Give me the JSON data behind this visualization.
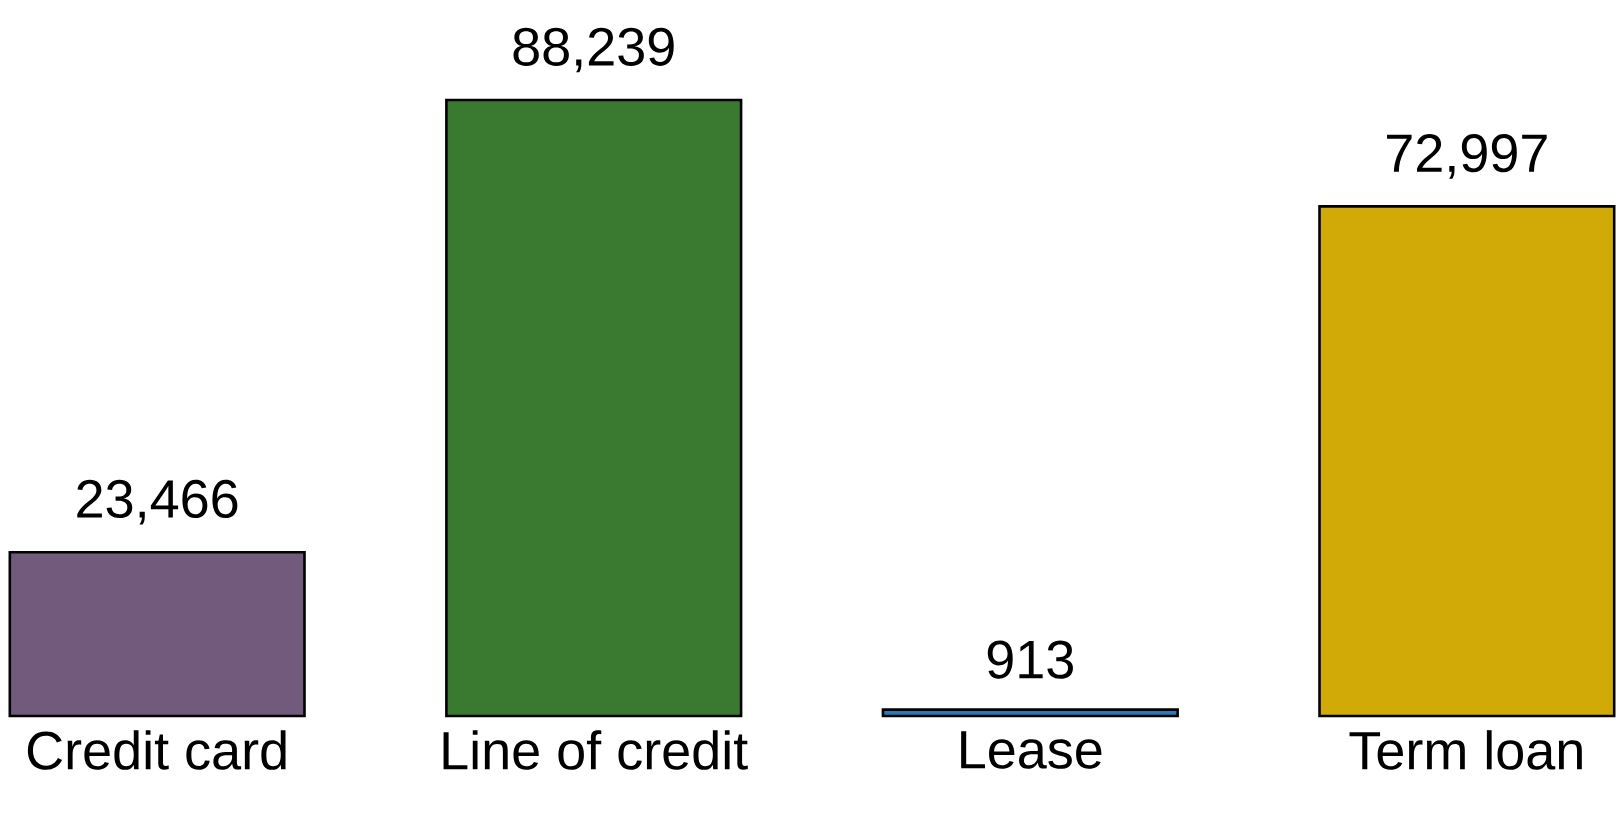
{
  "chart_data": {
    "type": "bar",
    "categories": [
      "Credit card",
      "Line of credit",
      "Lease",
      "Term loan"
    ],
    "values": [
      23466,
      88239,
      913,
      72997
    ],
    "colors": [
      "#725a7c",
      "#3a7a30",
      "#2a7ab8",
      "#d1aa08"
    ],
    "value_labels": [
      "23,466",
      "88,239",
      "913",
      "72,997"
    ]
  }
}
